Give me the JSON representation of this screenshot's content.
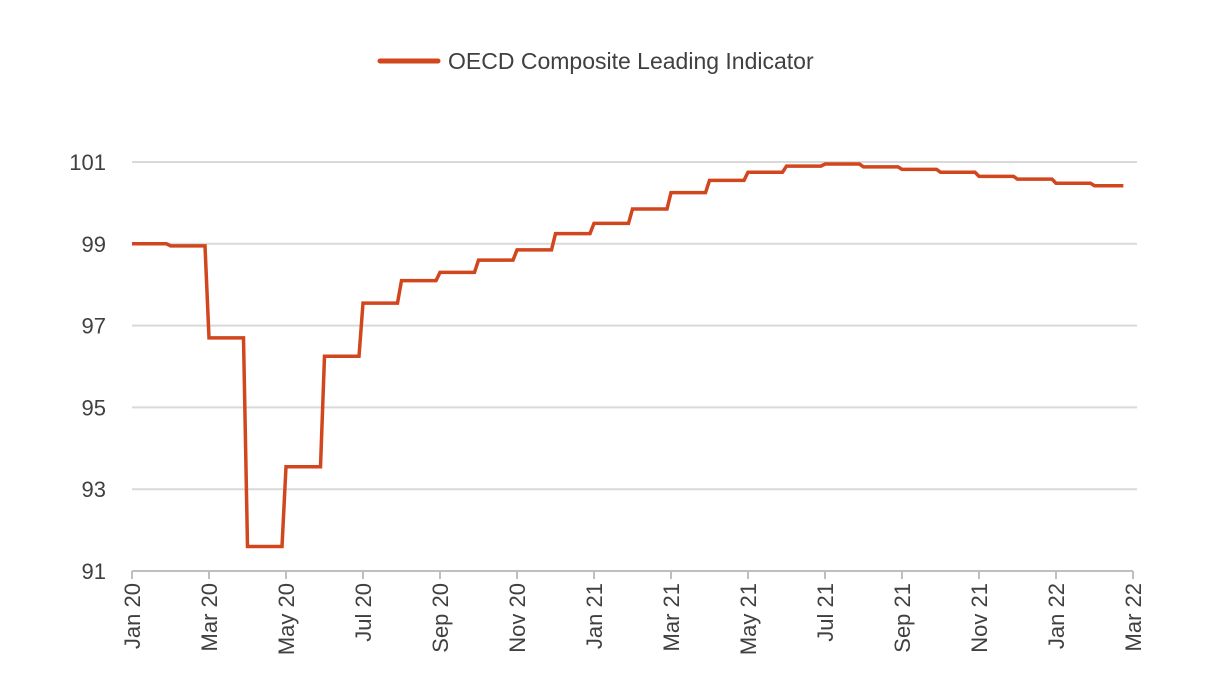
{
  "chart_data": {
    "type": "line",
    "title": "",
    "xlabel": "",
    "ylabel": "",
    "legend": {
      "position": "top-center",
      "entries": [
        "OECD Composite Leading Indicator"
      ]
    },
    "grid": {
      "horizontal": true,
      "vertical": false
    },
    "ylim": [
      91,
      101
    ],
    "yticks": [
      91,
      93,
      95,
      97,
      99,
      101
    ],
    "xticks": [
      "Jan 20",
      "Mar 20",
      "May 20",
      "Jul 20",
      "Sep 20",
      "Nov 20",
      "Jan 21",
      "Mar 21",
      "May 21",
      "Jul 21",
      "Sep 21",
      "Nov 21",
      "Jan 22",
      "Mar 22"
    ],
    "color": "#D2461E",
    "series": [
      {
        "name": "OECD Composite Leading Indicator",
        "step": true,
        "x": [
          "Jan 20",
          "Feb 20",
          "Mar 20",
          "Apr 20",
          "May 20",
          "Jun 20",
          "Jul 20",
          "Aug 20",
          "Sep 20",
          "Oct 20",
          "Nov 20",
          "Dec 20",
          "Jan 21",
          "Feb 21",
          "Mar 21",
          "Apr 21",
          "May 21",
          "Jun 21",
          "Jul 21",
          "Aug 21",
          "Sep 21",
          "Oct 21",
          "Nov 21",
          "Dec 21",
          "Jan 22",
          "Feb 22"
        ],
        "values": [
          99.0,
          98.95,
          96.7,
          91.6,
          93.55,
          96.25,
          97.55,
          98.1,
          98.3,
          98.6,
          98.85,
          99.25,
          99.5,
          99.85,
          100.25,
          100.55,
          100.75,
          100.9,
          100.95,
          100.88,
          100.82,
          100.75,
          100.65,
          100.58,
          100.48,
          100.42
        ]
      }
    ]
  }
}
